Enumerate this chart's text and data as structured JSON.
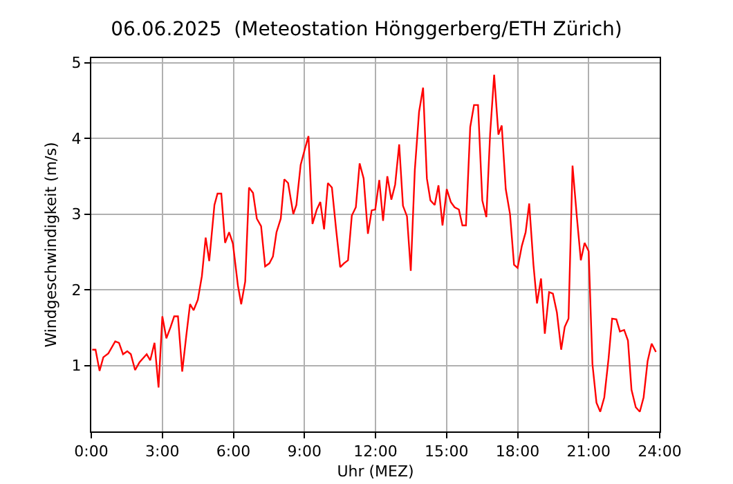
{
  "chart_data": {
    "type": "line",
    "title": "06.06.2025  (Meteostation Hönggerberg/ETH Zürich)",
    "xlabel": "Uhr (MEZ)",
    "ylabel": "Windgeschwindigkeit (m/s)",
    "xlim": [
      0,
      24
    ],
    "ylim": [
      0.13,
      5.06
    ],
    "xticks": [
      {
        "value": 0,
        "label": "0:00"
      },
      {
        "value": 3,
        "label": "3:00"
      },
      {
        "value": 6,
        "label": "6:00"
      },
      {
        "value": 9,
        "label": "9:00"
      },
      {
        "value": 12,
        "label": "12:00"
      },
      {
        "value": 15,
        "label": "15:00"
      },
      {
        "value": 18,
        "label": "18:00"
      },
      {
        "value": 21,
        "label": "21:00"
      },
      {
        "value": 24,
        "label": "24:00"
      }
    ],
    "yticks": [
      1,
      2,
      3,
      4,
      5
    ],
    "grid": true,
    "series": [
      {
        "color": "#ff0000",
        "x": [
          0.04,
          0.18,
          0.35,
          0.51,
          0.72,
          1.01,
          1.17,
          1.34,
          1.52,
          1.67,
          1.85,
          2.03,
          2.34,
          2.49,
          2.67,
          2.84,
          3.0,
          3.17,
          3.35,
          3.5,
          3.66,
          3.84,
          4.01,
          4.17,
          4.32,
          4.5,
          4.67,
          4.83,
          4.98,
          5.2,
          5.33,
          5.49,
          5.65,
          5.82,
          5.98,
          6.19,
          6.33,
          6.5,
          6.66,
          6.83,
          6.99,
          7.17,
          7.34,
          7.52,
          7.67,
          7.82,
          8.0,
          8.15,
          8.31,
          8.53,
          8.66,
          8.84,
          9.01,
          9.17,
          9.34,
          9.52,
          9.67,
          9.83,
          9.99,
          10.16,
          10.34,
          10.51,
          10.67,
          10.84,
          11.0,
          11.17,
          11.33,
          11.5,
          11.68,
          11.84,
          11.99,
          12.16,
          12.32,
          12.5,
          12.67,
          12.83,
          13.0,
          13.16,
          13.33,
          13.49,
          13.66,
          13.84,
          14.01,
          14.17,
          14.32,
          14.5,
          14.66,
          14.83,
          15.01,
          15.18,
          15.34,
          15.52,
          15.67,
          15.82,
          16.0,
          16.16,
          16.33,
          16.51,
          16.68,
          16.84,
          17.01,
          17.19,
          17.33,
          17.5,
          17.68,
          17.85,
          18.0,
          18.18,
          18.34,
          18.49,
          18.67,
          18.82,
          18.99,
          19.15,
          19.33,
          19.49,
          19.66,
          19.84,
          19.99,
          20.15,
          20.32,
          20.5,
          20.67,
          20.83,
          21.0,
          21.16,
          21.33,
          21.49,
          21.66,
          21.84,
          21.99,
          22.17,
          22.32,
          22.5,
          22.66,
          22.81,
          22.99,
          23.16,
          23.32,
          23.49,
          23.66,
          23.84
        ],
        "values": [
          1.21,
          1.21,
          0.93,
          1.11,
          1.16,
          1.32,
          1.3,
          1.15,
          1.19,
          1.15,
          0.94,
          1.04,
          1.15,
          1.07,
          1.3,
          0.71,
          1.65,
          1.36,
          1.51,
          1.65,
          1.65,
          0.92,
          1.39,
          1.81,
          1.73,
          1.87,
          2.18,
          2.69,
          2.38,
          3.12,
          3.27,
          3.27,
          2.62,
          2.76,
          2.61,
          2.06,
          1.81,
          2.11,
          3.35,
          3.28,
          2.94,
          2.84,
          2.31,
          2.35,
          2.44,
          2.76,
          2.94,
          3.46,
          3.41,
          3.0,
          3.12,
          3.65,
          3.85,
          4.03,
          2.87,
          3.06,
          3.16,
          2.8,
          3.41,
          3.35,
          2.79,
          2.3,
          2.35,
          2.39,
          2.98,
          3.09,
          3.67,
          3.47,
          2.74,
          3.05,
          3.06,
          3.45,
          2.91,
          3.5,
          3.19,
          3.39,
          3.92,
          3.11,
          2.97,
          2.25,
          3.58,
          4.35,
          4.67,
          3.47,
          3.18,
          3.12,
          3.38,
          2.85,
          3.33,
          3.16,
          3.09,
          3.06,
          2.85,
          2.85,
          4.15,
          4.44,
          4.44,
          3.18,
          2.96,
          4.06,
          4.84,
          4.05,
          4.17,
          3.33,
          3.0,
          2.33,
          2.29,
          2.58,
          2.76,
          3.14,
          2.33,
          1.82,
          2.15,
          1.42,
          1.97,
          1.95,
          1.7,
          1.21,
          1.51,
          1.62,
          3.64,
          2.97,
          2.39,
          2.62,
          2.51,
          1.02,
          0.51,
          0.39,
          0.58,
          1.09,
          1.62,
          1.61,
          1.45,
          1.47,
          1.33,
          0.68,
          0.45,
          0.39,
          0.58,
          1.06,
          1.29,
          1.18
        ]
      }
    ]
  }
}
